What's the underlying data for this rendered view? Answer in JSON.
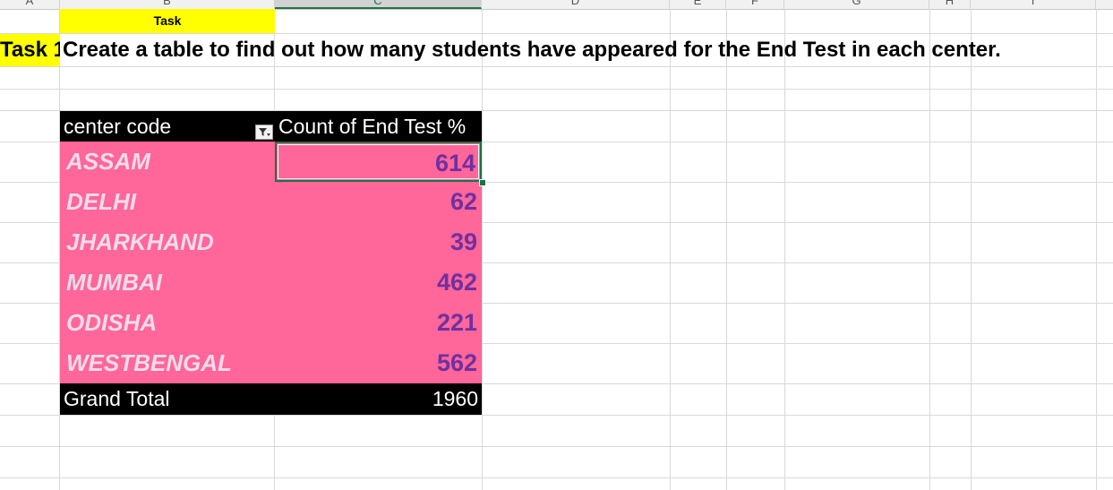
{
  "columns": [
    "A",
    "B",
    "C",
    "D",
    "E",
    "F",
    "G",
    "H",
    "I"
  ],
  "task_header": "Task",
  "task_label": "Task 1",
  "task_description": "Create a table to find out how many students have appeared for the End Test in each center.",
  "pivot": {
    "row_header": "center code",
    "value_header": "Count of End Test %",
    "filter_icon": "filter-dropdown-icon",
    "rows": [
      {
        "label": "ASSAM",
        "value": "614"
      },
      {
        "label": "DELHI",
        "value": "62"
      },
      {
        "label": "JHARKHAND",
        "value": "39"
      },
      {
        "label": "MUMBAI",
        "value": "462"
      },
      {
        "label": "ODISHA",
        "value": "221"
      },
      {
        "label": "WESTBENGAL",
        "value": "562"
      }
    ],
    "total_label": "Grand Total",
    "total_value": "1960"
  },
  "colors": {
    "task_fill": "#ffff00",
    "pivot_header_fill": "#000000",
    "row_fill": "#ff6699",
    "row_label_text": "#f2dcea",
    "value_text": "#7030a0",
    "selection": "#1e7145"
  }
}
